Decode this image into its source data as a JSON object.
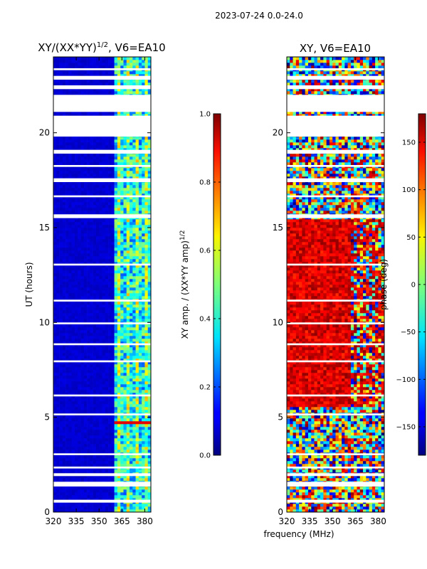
{
  "figure_title": "2023-07-24 0.0-24.0",
  "xlabel_shared": "frequency (MHz)",
  "colors": {
    "band_fill": "#ffffff",
    "frame": "#000000"
  },
  "chart_data": [
    {
      "type": "heatmap",
      "title_prefix": "XY/(XX*YY)",
      "title_exp": "1/2",
      "title_suffix": ", V6=EA10",
      "xlabel": "",
      "ylabel": "UT (hours)",
      "xlim": [
        320,
        384
      ],
      "ylim": [
        0,
        24
      ],
      "xticks": [
        320,
        335,
        350,
        365,
        380
      ],
      "yticks": [
        0,
        5,
        10,
        15,
        20
      ],
      "colorbar": {
        "label": "XY amp. / (XX*YY amp)",
        "label_exp": "1/2",
        "range": [
          0.0,
          1.0
        ],
        "ticks": [
          "0.0",
          "0.2",
          "0.4",
          "0.6",
          "0.8",
          "1.0"
        ],
        "tick_values": [
          0.0,
          0.2,
          0.4,
          0.6,
          0.8,
          1.0
        ]
      },
      "background_value": 0.06,
      "active_band_mhz": [
        361,
        383
      ],
      "active_value_range": [
        0.2,
        0.55
      ],
      "hot_spot": {
        "ut": [
          4.6,
          4.8
        ],
        "freq": [
          361,
          383
        ],
        "value": 0.9
      },
      "flagged_ut_intervals": [
        [
          0.5,
          0.65
        ],
        [
          1.35,
          1.6
        ],
        [
          1.9,
          2.05
        ],
        [
          2.3,
          2.4
        ],
        [
          3.0,
          3.1
        ],
        [
          5.1,
          5.2
        ],
        [
          6.1,
          6.2
        ],
        [
          7.9,
          8.0
        ],
        [
          8.8,
          8.9
        ],
        [
          9.9,
          10.0
        ],
        [
          11.1,
          11.2
        ],
        [
          13.0,
          13.1
        ],
        [
          15.5,
          15.7
        ],
        [
          16.6,
          16.7
        ],
        [
          17.4,
          17.6
        ],
        [
          18.2,
          18.3
        ],
        [
          18.9,
          19.1
        ],
        [
          19.8,
          20.9
        ],
        [
          21.1,
          22.0
        ],
        [
          22.3,
          22.5
        ],
        [
          22.8,
          23.0
        ],
        [
          23.3,
          23.4
        ]
      ]
    },
    {
      "type": "heatmap",
      "title": "XY, V6=EA10",
      "xlabel": "frequency (MHz)",
      "ylabel": "",
      "xlim": [
        320,
        384
      ],
      "ylim": [
        0,
        24
      ],
      "xticks": [
        320,
        335,
        350,
        365,
        380
      ],
      "yticks": [
        0,
        5,
        10,
        15,
        20
      ],
      "colorbar": {
        "label": "phase (deg)",
        "range": [
          -180,
          180
        ],
        "ticks": [
          "−150",
          "−100",
          "−50",
          "0",
          "50",
          "100",
          "150"
        ],
        "tick_values": [
          -150,
          -100,
          -50,
          0,
          50,
          100,
          150
        ]
      },
      "dominant_phase_deg": 150,
      "dominant_ut_range": [
        5.5,
        15.5
      ],
      "flagged_ut_intervals": [
        [
          0.5,
          0.65
        ],
        [
          1.35,
          1.6
        ],
        [
          1.9,
          2.05
        ],
        [
          2.3,
          2.4
        ],
        [
          3.0,
          3.1
        ],
        [
          5.1,
          5.2
        ],
        [
          6.1,
          6.2
        ],
        [
          7.9,
          8.0
        ],
        [
          8.8,
          8.9
        ],
        [
          9.9,
          10.0
        ],
        [
          11.1,
          11.2
        ],
        [
          13.0,
          13.1
        ],
        [
          15.5,
          15.7
        ],
        [
          16.6,
          16.7
        ],
        [
          17.4,
          17.6
        ],
        [
          18.2,
          18.3
        ],
        [
          18.9,
          19.1
        ],
        [
          19.8,
          20.9
        ],
        [
          21.1,
          22.0
        ],
        [
          22.3,
          22.5
        ],
        [
          22.8,
          23.0
        ],
        [
          23.3,
          23.4
        ]
      ]
    }
  ]
}
